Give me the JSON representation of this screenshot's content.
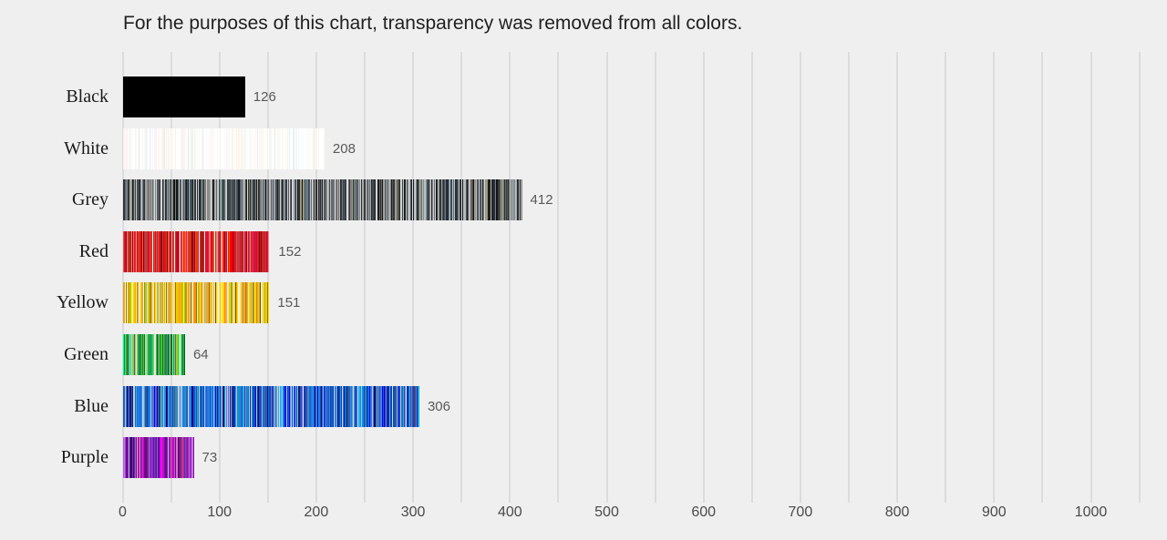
{
  "title": "For the purposes of this chart, transparency was removed from all colors.",
  "colors": {
    "background": "#efefef",
    "gridline": "#dcdcdc",
    "title_text": "#212121",
    "category_text": "#1a1a1a",
    "value_text": "#595959",
    "tick_text": "#4a4a4a"
  },
  "chart_data": {
    "type": "bar",
    "orientation": "horizontal",
    "title": "For the purposes of this chart, transparency was removed from all colors.",
    "categories": [
      "Black",
      "White",
      "Grey",
      "Red",
      "Yellow",
      "Green",
      "Blue",
      "Purple"
    ],
    "values": [
      126,
      208,
      412,
      152,
      151,
      64,
      306,
      73
    ],
    "value_labels": [
      "126",
      "208",
      "412",
      "152",
      "151",
      "64",
      "306",
      "73"
    ],
    "xlabel": "",
    "ylabel": "",
    "xlim": [
      0,
      1050
    ],
    "xtick_labels": [
      "0",
      "100",
      "200",
      "300",
      "400",
      "500",
      "600",
      "700",
      "800",
      "900",
      "1000"
    ],
    "xticks": [
      0,
      100,
      200,
      300,
      400,
      500,
      600,
      700,
      800,
      900,
      1000
    ],
    "minor_grid_step": 50,
    "grid": true,
    "legend": false,
    "bar_texture": "each bar is a barcode of thin vertical stripes, one stripe per counted color",
    "stripe_palettes": {
      "Black": [
        "#000000"
      ],
      "White": [
        "#ffffff",
        "#ffffff",
        "#ffffff",
        "#ffffff",
        "#ffffff",
        "#fefefe",
        "#fdfdfd",
        "#fbfbfb",
        "#fffafa",
        "#fff0f5",
        "#f0f8ff",
        "#fffff0",
        "#f5f5f5",
        "#f8f8ff",
        "#fff5ee",
        "#faf0e6",
        "#e9e9ef",
        "#fdf5e6",
        "#f0ffff",
        "#f2f2f2",
        "#ffffff",
        "#fcfcf7"
      ],
      "Grey": [
        "#111111",
        "#1f1f1f",
        "#2e2e2e",
        "#3d3d3d",
        "#4a4a4a",
        "#585858",
        "#666666",
        "#707070",
        "#7f7f7f",
        "#8c8c8c",
        "#9a9a9a",
        "#a9a9a9",
        "#b8b8b8",
        "#c0c0c0",
        "#cfcfcf",
        "#dcdcdc",
        "#708090",
        "#778899",
        "#2f4f4f",
        "#36454f",
        "#7d7d5e",
        "#9a9a7a",
        "#aebfce",
        "#5c6b7a",
        "#23303b",
        "#2b2b35",
        "#d3d3d3",
        "#4f5a66",
        "#343434",
        "#1a1a1a"
      ],
      "Red": [
        "#8b0000",
        "#a52a2a",
        "#b22222",
        "#dc143c",
        "#ff0000",
        "#e32636",
        "#cd5c5c",
        "#f08080",
        "#fa8072",
        "#ff6347",
        "#ff4500",
        "#c41e3a",
        "#960018",
        "#d2042d",
        "#ff2400",
        "#7c0a02",
        "#e9967a",
        "#ffc0cb",
        "#fff0f5",
        "#b03060",
        "#cd2626",
        "#8b3a3a",
        "#bf4040",
        "#a40000",
        "#ee204d",
        "#d9381e",
        "#b7410e",
        "#c04000",
        "#dc143c",
        "#ff0000"
      ],
      "Yellow": [
        "#ffd700",
        "#ffff00",
        "#ffa500",
        "#ff8c00",
        "#daa520",
        "#b8860b",
        "#808000",
        "#f0e68c",
        "#eee8aa",
        "#ffe4b5",
        "#ffdead",
        "#fffacd",
        "#fafad2",
        "#d2b48c",
        "#9acd32",
        "#bdb76b",
        "#e1a95f",
        "#8b7500",
        "#ffbf00",
        "#fcd12a",
        "#ffdb58",
        "#c49102",
        "#6b5300",
        "#ffd700",
        "#ffa500",
        "#eec900",
        "#cd950c"
      ],
      "Green": [
        "#006400",
        "#008000",
        "#228b22",
        "#2e8b57",
        "#3cb371",
        "#32cd32",
        "#00fa9a",
        "#66cdaa",
        "#8fbc8f",
        "#90ee90",
        "#6b8e23",
        "#556b2f",
        "#9acd32",
        "#00a86b",
        "#29ab87",
        "#4f7942",
        "#355e3b",
        "#50c878",
        "#a9ba9d",
        "#e8e8c8",
        "#1cac78",
        "#008b45",
        "#2e8b57",
        "#32cd32"
      ],
      "Blue": [
        "#00008b",
        "#000080",
        "#0000cd",
        "#0000ff",
        "#1e90ff",
        "#4169e1",
        "#4682b4",
        "#5f9ea0",
        "#6495ed",
        "#00bfff",
        "#87ceeb",
        "#87cefa",
        "#b0c4de",
        "#add8e6",
        "#483d8b",
        "#6a5acd",
        "#7b68ee",
        "#191970",
        "#0047ab",
        "#0073cf",
        "#2a52be",
        "#3b83bd",
        "#0f52ba",
        "#4f86f7",
        "#b0e0e6",
        "#36648b",
        "#104e8b",
        "#1c86ee",
        "#009acd",
        "#4169e1",
        "#1e90ff",
        "#2757c4"
      ],
      "Purple": [
        "#4b0082",
        "#800080",
        "#8b008b",
        "#9400d3",
        "#9932cc",
        "#8a2be2",
        "#a020f0",
        "#ba55d3",
        "#da70d6",
        "#ee82ee",
        "#dda0dd",
        "#9370db",
        "#7b68ee",
        "#6a0dad",
        "#c71585",
        "#ff00ff",
        "#d02090",
        "#b23aee",
        "#551a8b",
        "#3b0a45",
        "#e75480",
        "#bf00ff",
        "#aa00aa",
        "#e0b0ff",
        "#483d8b",
        "#7b2fbe"
      ]
    }
  }
}
